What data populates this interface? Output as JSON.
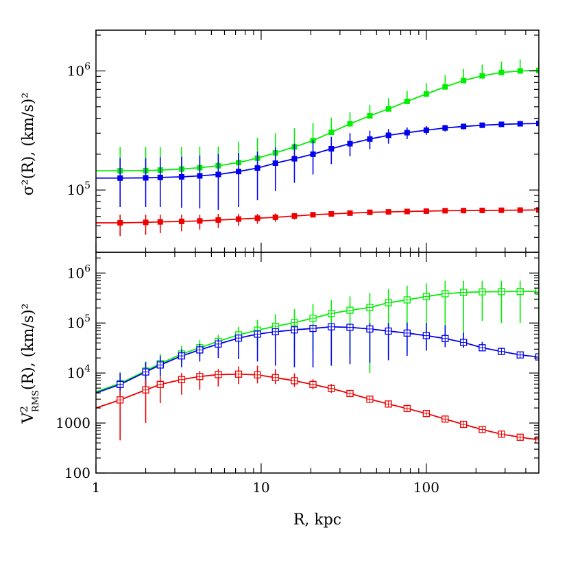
{
  "chart_data": [
    {
      "type": "line",
      "panel": "top",
      "ylabel": "σ²(R), (km/s)²",
      "xlabel": "",
      "xscale": "log",
      "yscale": "log",
      "xlim": [
        1,
        480
      ],
      "ylim": [
        30000,
        2200000
      ],
      "xticks": [
        {
          "value": 1,
          "label": "1"
        },
        {
          "value": 10,
          "label": "10"
        },
        {
          "value": 100,
          "label": "100"
        }
      ],
      "yticks": [
        {
          "value": 100000,
          "base": "10",
          "exp": "5"
        },
        {
          "value": 1000000,
          "base": "10",
          "exp": "6"
        }
      ],
      "marker": "filled-square",
      "x": [
        1.4,
        2,
        2.45,
        3.3,
        4.25,
        5.5,
        7.3,
        9.5,
        12.2,
        15.9,
        20.6,
        26.6,
        34.5,
        45.5,
        59,
        76.5,
        100,
        130,
        168,
        218,
        285,
        370,
        480
      ],
      "series": [
        {
          "color": "#00ee00",
          "values": [
            145000,
            145500,
            147000,
            150000,
            154000,
            160000,
            170000,
            185000,
            205000,
            230000,
            260000,
            305000,
            360000,
            420000,
            480000,
            555000,
            640000,
            735000,
            830000,
            910000,
            970000,
            1000000,
            1010000
          ],
          "err_lo": [
            145000,
            145500,
            147000,
            150000,
            154000,
            160000,
            170000,
            185000,
            205000,
            230000,
            260000,
            305000,
            360000,
            420000,
            480000,
            555000,
            640000,
            735000,
            830000,
            910000,
            970000,
            1000000,
            1010000
          ],
          "err_hi": [
            230000,
            230000,
            230000,
            230000,
            231000,
            232000,
            255000,
            275000,
            300000,
            330000,
            365000,
            405000,
            450000,
            520000,
            590000,
            680000,
            790000,
            920000,
            1040000,
            1130000,
            1200000,
            1250000,
            1250000
          ]
        },
        {
          "color": "#0000ee",
          "values": [
            126000,
            126500,
            127500,
            129000,
            131500,
            135000,
            143000,
            153000,
            168000,
            183000,
            200000,
            222000,
            245000,
            268000,
            288000,
            303000,
            318000,
            332000,
            342000,
            350000,
            356000,
            360000,
            362000
          ],
          "err_lo": [
            72000,
            72000,
            72000,
            71000,
            70000,
            68000,
            72000,
            82000,
            98000,
            115000,
            135000,
            165000,
            192000,
            220000,
            245000,
            268000,
            290000,
            310000,
            323000,
            335000,
            343000,
            350000,
            352000
          ],
          "err_hi": [
            185000,
            185000,
            188000,
            190000,
            195000,
            200000,
            205000,
            210000,
            228000,
            245000,
            262000,
            280000,
            300000,
            315000,
            325000,
            335000,
            345000,
            352000,
            358000,
            365000,
            368000,
            370000,
            372000
          ]
        },
        {
          "color": "#ee0000",
          "values": [
            53000,
            53500,
            54000,
            54500,
            55000,
            56000,
            57000,
            58000,
            59000,
            60500,
            62000,
            63000,
            64000,
            65000,
            65500,
            66000,
            66500,
            67000,
            67200,
            67400,
            67600,
            67800,
            68000
          ],
          "err_lo": [
            41000,
            42000,
            43500,
            45000,
            46500,
            48000,
            50000,
            52000,
            54000,
            56500,
            59000,
            61000,
            62000,
            63500,
            64000,
            64500,
            65000,
            65500,
            65700,
            65900,
            66100,
            66300,
            66500
          ],
          "err_hi": [
            62000,
            62000,
            62000,
            62000,
            62000,
            63000,
            63000,
            63000,
            63500,
            64000,
            65000,
            65500,
            66000,
            66500,
            67000,
            67500,
            68000,
            68500,
            68700,
            68900,
            69100,
            69300,
            69500
          ]
        }
      ]
    },
    {
      "type": "line",
      "panel": "bottom",
      "ylabel": "V²RMS(R), (km/s)²",
      "xlabel": "R, kpc",
      "xscale": "log",
      "yscale": "log",
      "xlim": [
        1,
        480
      ],
      "ylim": [
        100,
        2600000
      ],
      "xticks": [
        {
          "value": 1,
          "label": "1"
        },
        {
          "value": 10,
          "label": "10"
        },
        {
          "value": 100,
          "label": "100"
        }
      ],
      "yticks": [
        {
          "value": 100,
          "label": "100"
        },
        {
          "value": 1000,
          "label": "1000"
        },
        {
          "value": 10000,
          "base": "10",
          "exp": "4"
        },
        {
          "value": 100000,
          "base": "10",
          "exp": "5"
        },
        {
          "value": 1000000,
          "base": "10",
          "exp": "6"
        }
      ],
      "marker": "open-crossed-square",
      "x": [
        1.4,
        2,
        2.45,
        3.3,
        4.25,
        5.5,
        7.3,
        9.5,
        12.2,
        15.9,
        20.6,
        26.6,
        34.5,
        45.5,
        59,
        76.5,
        100,
        130,
        168,
        218,
        285,
        370,
        480
      ],
      "series": [
        {
          "color": "#00ee00",
          "curve_start": [
            1,
            4200
          ],
          "values": [
            6200,
            11000,
            15500,
            24000,
            32000,
            43000,
            58000,
            72000,
            86000,
            102000,
            125000,
            155000,
            180000,
            205000,
            255000,
            290000,
            340000,
            385000,
            410000,
            420000,
            425000,
            428000,
            430000
          ],
          "err_lo": [
            3700,
            5500,
            9000,
            15000,
            22000,
            31000,
            38000,
            36000,
            30000,
            28000,
            28000,
            26000,
            20000,
            10000,
            22000,
            26000,
            30000,
            38000,
            60000,
            110000,
            100000,
            100000,
            100000
          ],
          "err_hi": [
            10500,
            17000,
            24000,
            35000,
            46000,
            58000,
            83000,
            115000,
            150000,
            190000,
            240000,
            290000,
            340000,
            400000,
            480000,
            560000,
            620000,
            700000,
            700000,
            700000,
            700000,
            700000,
            700000
          ]
        },
        {
          "color": "#0000ee",
          "curve_start": [
            1,
            4000
          ],
          "values": [
            5900,
            10500,
            14500,
            22000,
            29000,
            38000,
            50000,
            60000,
            67000,
            73000,
            78000,
            84000,
            82000,
            76000,
            69000,
            63000,
            56000,
            49000,
            41000,
            32000,
            27000,
            23000,
            21000
          ],
          "err_lo": [
            3500,
            5200,
            8500,
            13000,
            17000,
            20000,
            19000,
            17000,
            14000,
            13000,
            13000,
            14000,
            15000,
            16000,
            18000,
            22000,
            28000,
            33000,
            32000,
            28000,
            24000,
            21000,
            19500
          ],
          "err_hi": [
            10000,
            16500,
            22000,
            30000,
            38000,
            48000,
            58000,
            66000,
            73000,
            80000,
            86000,
            92000,
            96000,
            100000,
            100000,
            102000,
            100000,
            90000,
            64000,
            42000,
            32000,
            26000,
            23000
          ]
        },
        {
          "color": "#ee0000",
          "curve_start": [
            1,
            2000
          ],
          "values": [
            2900,
            4600,
            5900,
            7400,
            8500,
            9300,
            9500,
            9200,
            8100,
            7000,
            5900,
            4900,
            3900,
            3000,
            2400,
            1950,
            1550,
            1200,
            940,
            740,
            600,
            520,
            460
          ],
          "err_lo": [
            450,
            1000,
            2500,
            3700,
            4600,
            5400,
            6000,
            6200,
            6000,
            5300,
            4700,
            4000,
            3400,
            2700,
            2200,
            1800,
            1450,
            1120,
            880,
            690,
            560,
            490,
            430
          ],
          "err_hi": [
            4400,
            7500,
            8400,
            10000,
            11000,
            12000,
            13500,
            14000,
            12000,
            9800,
            7500,
            6000,
            4500,
            3300,
            2600,
            2100,
            1650,
            1280,
            1000,
            790,
            640,
            550,
            490
          ]
        }
      ]
    }
  ]
}
